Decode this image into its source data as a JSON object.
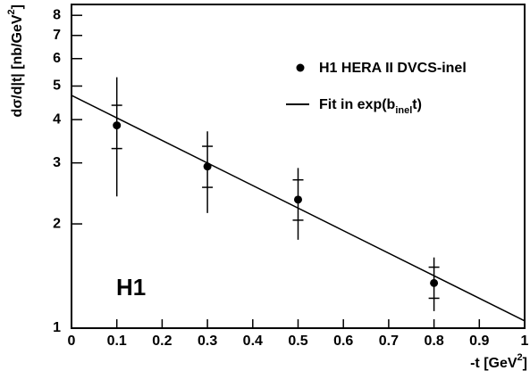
{
  "chart_data": {
    "type": "scatter",
    "x_label": "-t [GeV",
    "x_label_sup": "2",
    "x_label_end": "]",
    "y_label": "dσ/d|t| [nb/GeV",
    "y_label_sup": "2",
    "y_label_end": "]",
    "annotation": "H1",
    "xlim": [
      0,
      1
    ],
    "xticks": [
      0,
      0.1,
      0.2,
      0.3,
      0.4,
      0.5,
      0.6,
      0.7,
      0.8,
      0.9,
      1
    ],
    "ylim": [
      1,
      8.6
    ],
    "yticks": [
      1,
      2,
      3,
      4,
      5,
      6,
      7,
      8
    ],
    "ylog": true,
    "series": [
      {
        "name": "H1 HERA II DVCS-inel",
        "type": "scatter",
        "color": "#000000",
        "x": [
          0.1,
          0.3,
          0.5,
          0.8
        ],
        "values": [
          3.85,
          2.93,
          2.35,
          1.35
        ],
        "stat_low": [
          3.3,
          2.55,
          2.05,
          1.22
        ],
        "stat_high": [
          4.4,
          3.35,
          2.68,
          1.5
        ],
        "total_low": [
          2.4,
          2.15,
          1.8,
          1.12
        ],
        "total_high": [
          5.3,
          3.7,
          2.9,
          1.6
        ]
      },
      {
        "name": "Fit in exp(b",
        "name_sub": "inel",
        "name_end": "t)",
        "type": "line",
        "color": "#000000",
        "x": [
          0,
          1
        ],
        "values": [
          4.7,
          1.05
        ]
      }
    ]
  }
}
